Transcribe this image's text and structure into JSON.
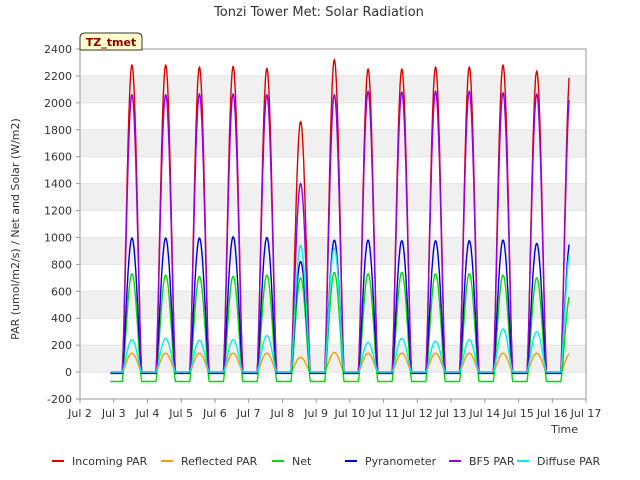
{
  "chart_data": {
    "type": "line",
    "title": "Tonzi Tower Met: Solar Radiation",
    "xlabel": "Time",
    "ylabel": "PAR (umol/m2/s) / Net and Solar (W/m2)",
    "site_badge": "TZ_tmet",
    "ylim": [
      -200,
      2400
    ],
    "xlim": [
      2,
      17
    ],
    "yticks": [
      -200,
      0,
      200,
      400,
      600,
      800,
      1000,
      1200,
      1400,
      1600,
      1800,
      2000,
      2200,
      2400
    ],
    "xticks": [
      {
        "value": 2,
        "label": "Jul 2"
      },
      {
        "value": 3,
        "label": "Jul 3"
      },
      {
        "value": 4,
        "label": "Jul 4"
      },
      {
        "value": 5,
        "label": "Jul 5"
      },
      {
        "value": 6,
        "label": "Jul 6"
      },
      {
        "value": 7,
        "label": "Jul 7"
      },
      {
        "value": 8,
        "label": "Jul 8"
      },
      {
        "value": 9,
        "label": "Jul 9"
      },
      {
        "value": 10,
        "label": "Jul 10"
      },
      {
        "value": 11,
        "label": "Jul 11"
      },
      {
        "value": 12,
        "label": "Jul 12"
      },
      {
        "value": 13,
        "label": "Jul 13"
      },
      {
        "value": 14,
        "label": "Jul 14"
      },
      {
        "value": 15,
        "label": "Jul 15"
      },
      {
        "value": 16,
        "label": "Jul 16"
      },
      {
        "value": 17,
        "label": "Jul 17"
      }
    ],
    "grid": "horizontal bands",
    "legend_position": "bottom",
    "days": [
      3,
      4,
      5,
      6,
      7,
      8,
      9,
      10,
      11,
      12,
      13,
      14,
      15,
      16
    ],
    "series": [
      {
        "name": "Incoming PAR",
        "color": "#dd0000",
        "night": 0,
        "daily_peak": [
          2280,
          2280,
          2265,
          2270,
          2255,
          1860,
          2320,
          2250,
          2250,
          2265,
          2265,
          2280,
          2235,
          2260
        ]
      },
      {
        "name": "Reflected PAR",
        "color": "#f0a000",
        "night": 0,
        "daily_peak": [
          140,
          140,
          140,
          140,
          140,
          110,
          145,
          140,
          140,
          140,
          140,
          140,
          140,
          140
        ]
      },
      {
        "name": "Net",
        "color": "#00dd00",
        "night": -70,
        "daily_peak": [
          730,
          720,
          710,
          710,
          720,
          700,
          740,
          730,
          740,
          730,
          730,
          720,
          700,
          580
        ]
      },
      {
        "name": "Pyranometer",
        "color": "#0000cc",
        "night": -10,
        "daily_peak": [
          995,
          995,
          995,
          1005,
          1000,
          820,
          980,
          980,
          975,
          975,
          975,
          980,
          955,
          980
        ]
      },
      {
        "name": "BF5 PAR",
        "color": "#9900dd",
        "night": 0,
        "daily_peak": [
          2060,
          2060,
          2065,
          2065,
          2060,
          1400,
          2060,
          2085,
          2080,
          2085,
          2085,
          2075,
          2065,
          2090
        ]
      },
      {
        "name": "Diffuse PAR",
        "color": "#00eeee",
        "night": 0,
        "daily_peak": [
          240,
          250,
          235,
          240,
          270,
          940,
          920,
          220,
          250,
          230,
          240,
          320,
          300,
          900
        ]
      }
    ]
  }
}
